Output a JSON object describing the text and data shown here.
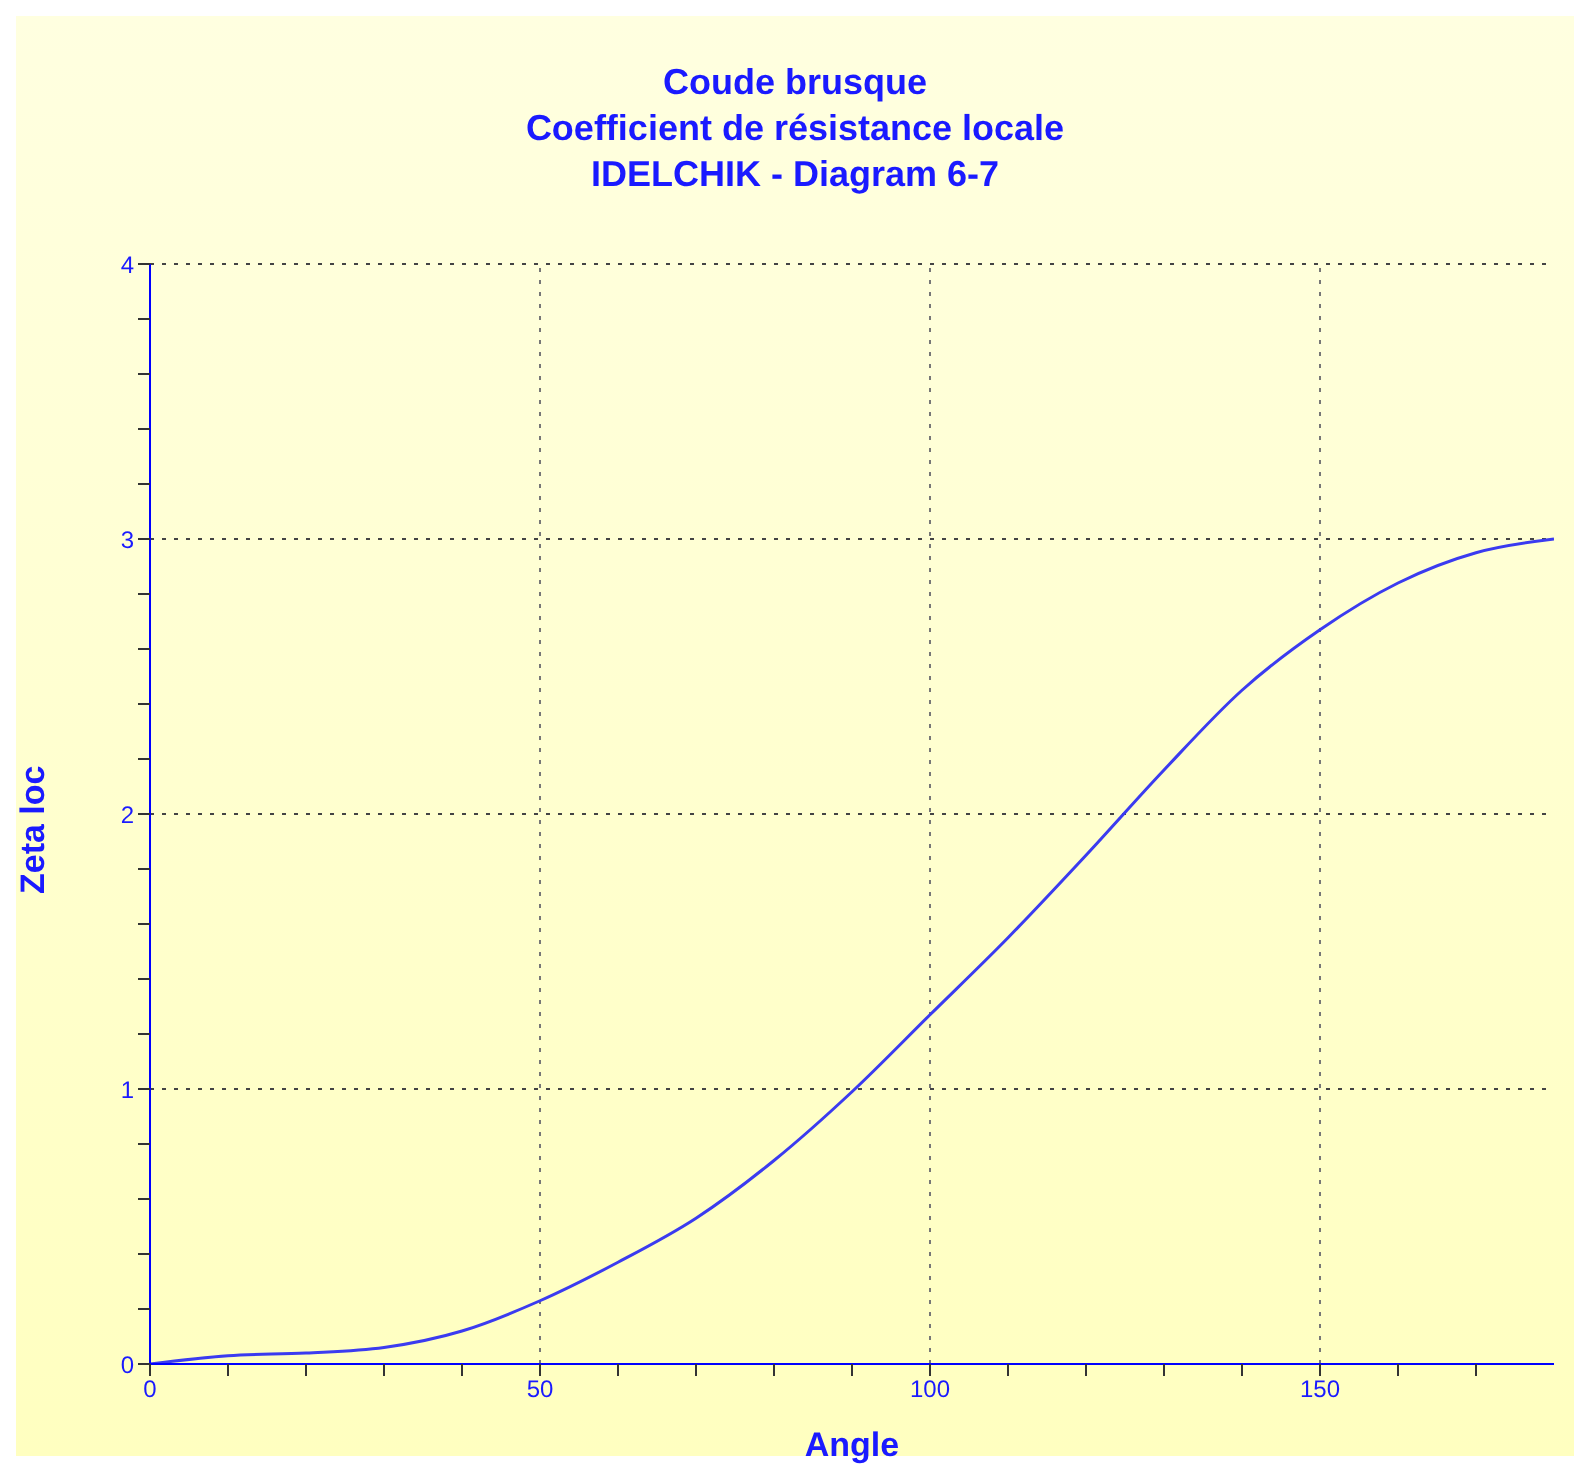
{
  "chart_data": {
    "type": "line",
    "title": "Coude brusque\nCoefficient de résistance locale\nIDELCHIK - Diagram 6-7",
    "xlabel": "Angle",
    "ylabel": "Zeta loc",
    "x": [
      0,
      10,
      20,
      30,
      40,
      50,
      60,
      70,
      80,
      90,
      100,
      110,
      120,
      130,
      140,
      150,
      160,
      170,
      180
    ],
    "series": [
      {
        "color": "#3b3bf0",
        "values": [
          0,
          0.03,
          0.04,
          0.06,
          0.12,
          0.23,
          0.37,
          0.53,
          0.74,
          0.99,
          1.27,
          1.55,
          1.85,
          2.16,
          2.45,
          2.67,
          2.84,
          2.95,
          3.0
        ]
      }
    ],
    "xlim": [
      0,
      180
    ],
    "ylim": [
      0,
      4
    ],
    "xticks": [
      0,
      {
        "value": 10,
        "label": null
      },
      {
        "value": 20,
        "label": null
      },
      {
        "value": 30,
        "label": null
      },
      {
        "value": 40,
        "label": null
      },
      50,
      {
        "value": 60,
        "label": null
      },
      {
        "value": 70,
        "label": null
      },
      {
        "value": 80,
        "label": null
      },
      {
        "value": 90,
        "label": null
      },
      100,
      {
        "value": 110,
        "label": null
      },
      {
        "value": 120,
        "label": null
      },
      {
        "value": 130,
        "label": null
      },
      {
        "value": 140,
        "label": null
      },
      150,
      {
        "value": 160,
        "label": null
      },
      {
        "value": 170,
        "label": null
      }
    ],
    "yticks": [
      0,
      {
        "value": 0.2,
        "label": null
      },
      {
        "value": 0.4,
        "label": null
      },
      {
        "value": 0.6,
        "label": null
      },
      {
        "value": 0.8,
        "label": null
      },
      1,
      {
        "value": 1.2,
        "label": null
      },
      {
        "value": 1.4,
        "label": null
      },
      {
        "value": 1.6,
        "label": null
      },
      {
        "value": 1.8,
        "label": null
      },
      2,
      {
        "value": 2.2,
        "label": null
      },
      {
        "value": 2.4,
        "label": null
      },
      {
        "value": 2.6,
        "label": null
      },
      {
        "value": 2.8,
        "label": null
      },
      3,
      {
        "value": 3.2,
        "label": null
      },
      {
        "value": 3.4,
        "label": null
      },
      {
        "value": 3.6,
        "label": null
      },
      {
        "value": 3.8,
        "label": null
      },
      4
    ],
    "grid": true,
    "marker": "none",
    "line_style": "solid",
    "legend": false
  }
}
